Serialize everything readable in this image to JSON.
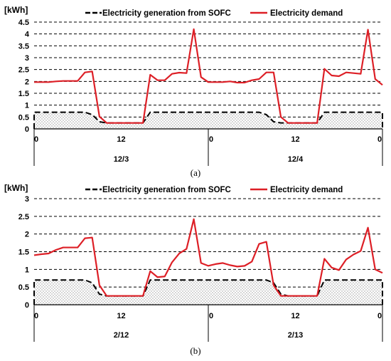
{
  "chart_data": [
    {
      "type": "line",
      "caption": "(a)",
      "unit_label": "[kWh]",
      "ylim": [
        0,
        4.5
      ],
      "yticks": [
        "0",
        "0.5",
        "1",
        "1.5",
        "2",
        "2.5",
        "3",
        "3.5",
        "4",
        "4.5"
      ],
      "grid": "horizontal dashed",
      "legend": "top",
      "x_tick_labels": [
        "0",
        "12",
        "0",
        "12",
        "0"
      ],
      "x_categories": [
        "12/3",
        "12/4"
      ],
      "x_hours": [
        0,
        1,
        2,
        3,
        4,
        5,
        6,
        7,
        8,
        9,
        10,
        11,
        12,
        13,
        14,
        15,
        16,
        17,
        18,
        19,
        20,
        21,
        22,
        23,
        24,
        25,
        26,
        27,
        28,
        29,
        30,
        31,
        32,
        33,
        34,
        35,
        36,
        37,
        38,
        39,
        40,
        41,
        42,
        43,
        44,
        45,
        46,
        47,
        48
      ],
      "series": [
        {
          "name": "Electricity generation from SOFC",
          "color": "#000000",
          "style": "dashed-area",
          "values": [
            0.7,
            0.7,
            0.7,
            0.7,
            0.7,
            0.7,
            0.7,
            0.7,
            0.6,
            0.3,
            0.25,
            0.25,
            0.25,
            0.25,
            0.25,
            0.25,
            0.7,
            0.7,
            0.7,
            0.7,
            0.7,
            0.7,
            0.7,
            0.7,
            0.7,
            0.7,
            0.7,
            0.7,
            0.7,
            0.7,
            0.7,
            0.7,
            0.6,
            0.3,
            0.25,
            0.25,
            0.25,
            0.25,
            0.25,
            0.25,
            0.7,
            0.7,
            0.7,
            0.7,
            0.7,
            0.7,
            0.7,
            0.7,
            0.7
          ]
        },
        {
          "name": "Electricity demand",
          "color": "#dd1f26",
          "style": "line",
          "values": [
            1.97,
            1.97,
            1.97,
            2.0,
            2.02,
            2.02,
            2.02,
            2.38,
            2.42,
            0.52,
            0.25,
            0.25,
            0.25,
            0.25,
            0.25,
            0.25,
            2.28,
            2.05,
            2.05,
            2.32,
            2.37,
            2.35,
            4.2,
            2.18,
            1.97,
            1.97,
            1.97,
            2.0,
            1.95,
            1.95,
            2.05,
            2.1,
            2.38,
            2.38,
            0.5,
            0.25,
            0.25,
            0.25,
            0.25,
            0.25,
            2.53,
            2.25,
            2.22,
            2.38,
            2.35,
            2.32,
            4.18,
            2.1,
            1.85
          ]
        }
      ]
    },
    {
      "type": "line",
      "caption": "(b)",
      "unit_label": "[kWh]",
      "ylim": [
        0,
        3
      ],
      "yticks": [
        "0",
        "0.5",
        "1",
        "1.5",
        "2",
        "2.5",
        "3"
      ],
      "grid": "horizontal dashed",
      "legend": "top",
      "x_tick_labels": [
        "0",
        "12",
        "0",
        "12",
        "0"
      ],
      "x_categories": [
        "2/12",
        "2/13"
      ],
      "x_hours": [
        0,
        1,
        2,
        3,
        4,
        5,
        6,
        7,
        8,
        9,
        10,
        11,
        12,
        13,
        14,
        15,
        16,
        17,
        18,
        19,
        20,
        21,
        22,
        23,
        24,
        25,
        26,
        27,
        28,
        29,
        30,
        31,
        32,
        33,
        34,
        35,
        36,
        37,
        38,
        39,
        40,
        41,
        42,
        43,
        44,
        45,
        46,
        47,
        48
      ],
      "series": [
        {
          "name": "Electricity generation from SOFC",
          "color": "#000000",
          "style": "dashed-area",
          "values": [
            0.7,
            0.7,
            0.7,
            0.7,
            0.7,
            0.7,
            0.7,
            0.7,
            0.62,
            0.3,
            0.25,
            0.25,
            0.25,
            0.25,
            0.25,
            0.25,
            0.7,
            0.7,
            0.7,
            0.7,
            0.7,
            0.7,
            0.7,
            0.7,
            0.7,
            0.7,
            0.7,
            0.7,
            0.7,
            0.7,
            0.7,
            0.7,
            0.7,
            0.62,
            0.3,
            0.25,
            0.25,
            0.25,
            0.25,
            0.25,
            0.7,
            0.7,
            0.7,
            0.7,
            0.7,
            0.7,
            0.7,
            0.7,
            0.7
          ]
        },
        {
          "name": "Electricity demand",
          "color": "#dd1f26",
          "style": "line",
          "values": [
            1.4,
            1.43,
            1.45,
            1.55,
            1.62,
            1.62,
            1.62,
            1.88,
            1.9,
            0.55,
            0.25,
            0.25,
            0.25,
            0.25,
            0.25,
            0.25,
            0.95,
            0.78,
            0.8,
            1.2,
            1.45,
            1.58,
            2.42,
            1.18,
            1.1,
            1.15,
            1.18,
            1.12,
            1.08,
            1.1,
            1.22,
            1.72,
            1.78,
            0.55,
            0.25,
            0.25,
            0.25,
            0.25,
            0.25,
            0.25,
            1.3,
            1.05,
            0.98,
            1.28,
            1.42,
            1.52,
            2.18,
            1.0,
            0.9
          ]
        }
      ]
    }
  ]
}
